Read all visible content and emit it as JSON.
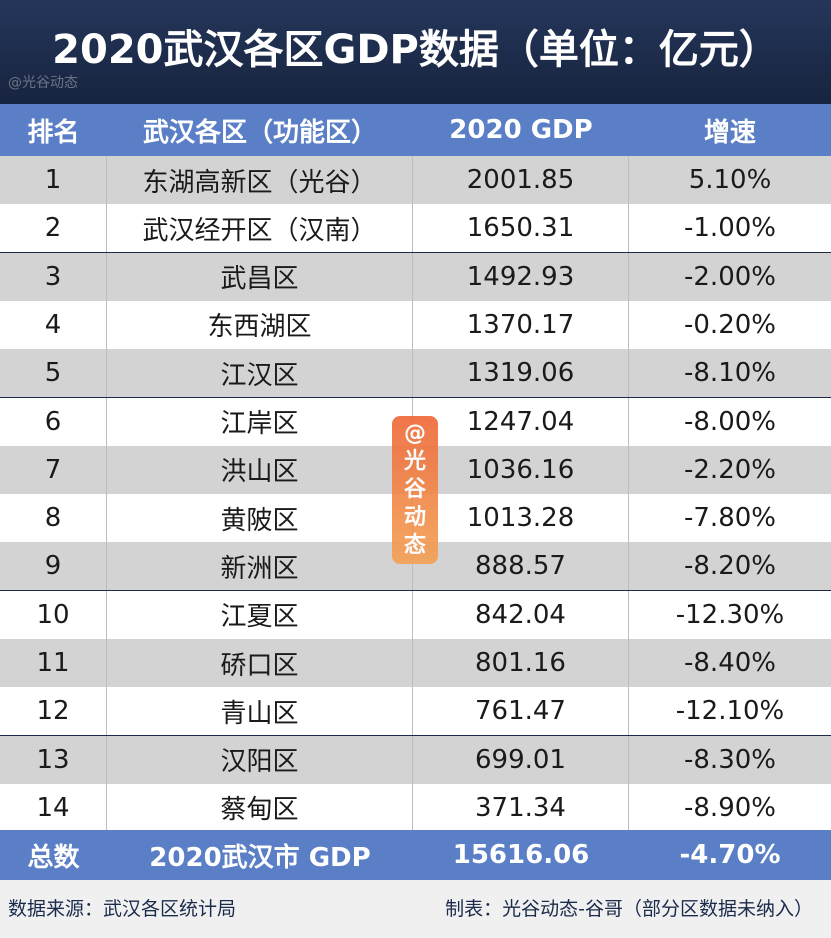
{
  "title": "2020武汉各区GDP数据（单位：亿元）",
  "watermark_small": "@光谷动态",
  "header": {
    "rank": "排名",
    "district": "武汉各区（功能区）",
    "gdp": "2020 GDP",
    "growth": "增速"
  },
  "rows": [
    {
      "rank": "1",
      "district": "东湖高新区（光谷）",
      "gdp": "2001.85",
      "growth": "5.10%"
    },
    {
      "rank": "2",
      "district": "武汉经开区（汉南）",
      "gdp": "1650.31",
      "growth": "-1.00%"
    },
    {
      "rank": "3",
      "district": "武昌区",
      "gdp": "1492.93",
      "growth": "-2.00%"
    },
    {
      "rank": "4",
      "district": "东西湖区",
      "gdp": "1370.17",
      "growth": "-0.20%"
    },
    {
      "rank": "5",
      "district": "江汉区",
      "gdp": "1319.06",
      "growth": "-8.10%"
    },
    {
      "rank": "6",
      "district": "江岸区",
      "gdp": "1247.04",
      "growth": "-8.00%"
    },
    {
      "rank": "7",
      "district": "洪山区",
      "gdp": "1036.16",
      "growth": "-2.20%"
    },
    {
      "rank": "8",
      "district": "黄陂区",
      "gdp": "1013.28",
      "growth": "-7.80%"
    },
    {
      "rank": "9",
      "district": "新洲区",
      "gdp": "888.57",
      "growth": "-8.20%"
    },
    {
      "rank": "10",
      "district": "江夏区",
      "gdp": "842.04",
      "growth": "-12.30%"
    },
    {
      "rank": "11",
      "district": "硚口区",
      "gdp": "801.16",
      "growth": "-8.40%"
    },
    {
      "rank": "12",
      "district": "青山区",
      "gdp": "761.47",
      "growth": "-12.10%"
    },
    {
      "rank": "13",
      "district": "汉阳区",
      "gdp": "699.01",
      "growth": "-8.30%"
    },
    {
      "rank": "14",
      "district": "蔡甸区",
      "gdp": "371.34",
      "growth": "-8.90%"
    }
  ],
  "total": {
    "label": "总数",
    "district": "2020武汉市 GDP",
    "gdp": "15616.06",
    "growth": "-4.70%"
  },
  "footer": {
    "source": "数据来源：武汉各区统计局",
    "credit": "制表：光谷动态-谷哥（部分区数据未纳入）"
  },
  "stamp": {
    "chars": [
      "@",
      "光",
      "谷",
      "动",
      "态"
    ]
  },
  "colors": {
    "background": "#1b2b4b",
    "header": "#5b7fc6",
    "row_odd": "#d3d3d3",
    "row_even": "#ffffff",
    "stamp": "#ef6a3a"
  }
}
